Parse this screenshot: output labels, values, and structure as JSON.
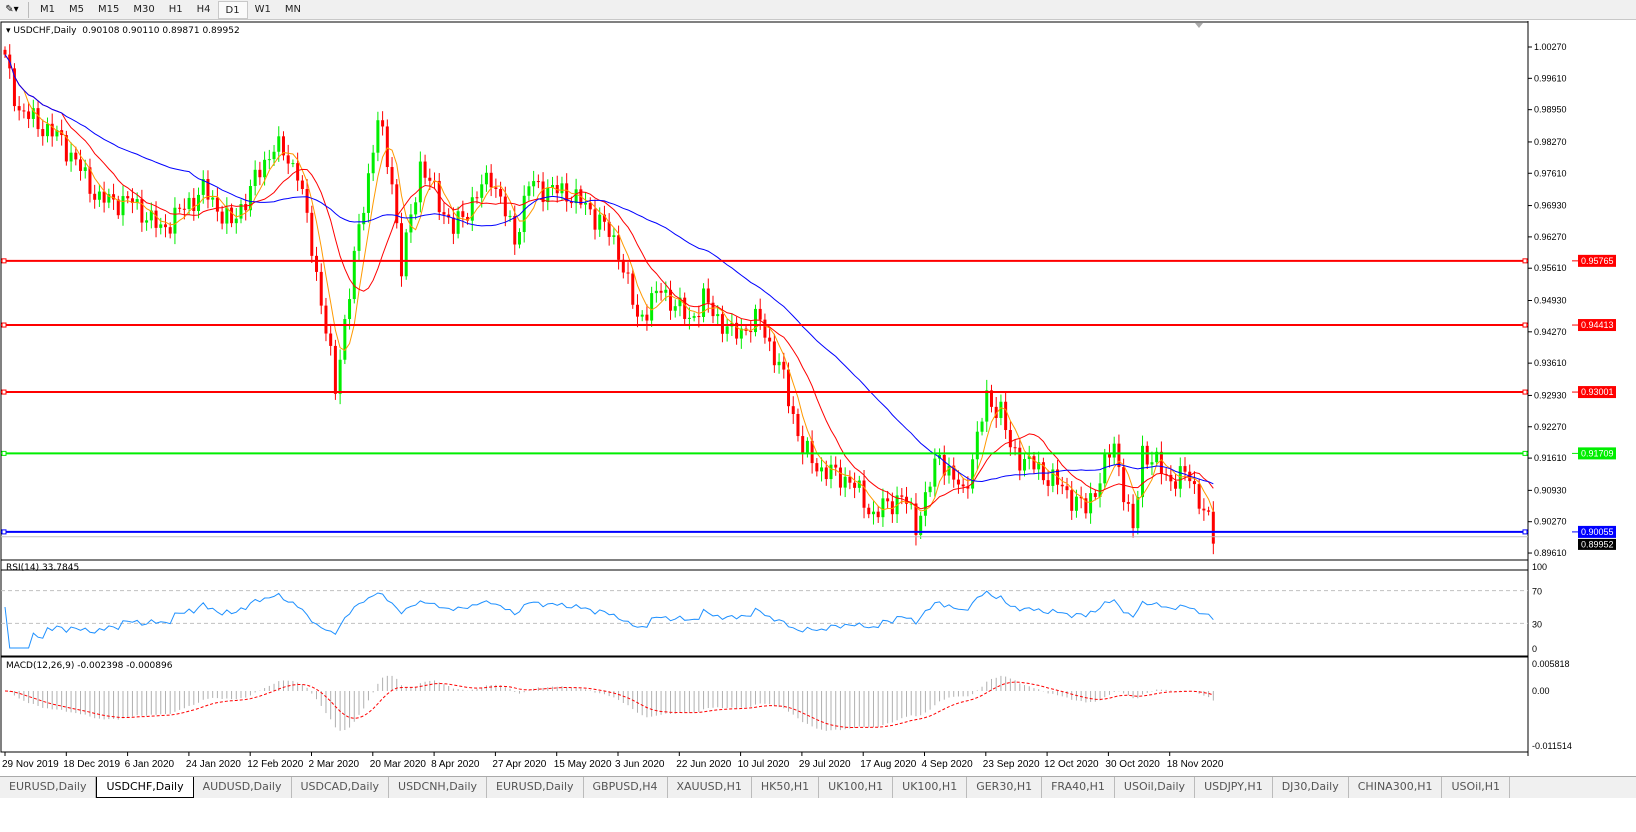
{
  "toolbar": {
    "timeframes": [
      "M1",
      "M5",
      "M15",
      "M30",
      "H1",
      "H4",
      "D1",
      "W1",
      "MN"
    ],
    "active": "D1"
  },
  "chart": {
    "symbol_label": "USDCHF,Daily",
    "ohlc": "0.90108 0.90110 0.89871 0.89952",
    "price_ticks": [
      "1.00270",
      "0.99610",
      "0.98950",
      "0.98270",
      "0.97610",
      "0.96930",
      "0.96270",
      "0.95610",
      "0.94930",
      "0.94270",
      "0.93610",
      "0.92930",
      "0.92270",
      "0.91610",
      "0.90930",
      "0.90270",
      "0.89610"
    ],
    "levels": [
      {
        "price": "0.95765",
        "color": "#ff0000"
      },
      {
        "price": "0.94413",
        "color": "#ff0000"
      },
      {
        "price": "0.93001",
        "color": "#ff0000"
      },
      {
        "price": "0.91709",
        "color": "#00ee00"
      },
      {
        "price": "0.90055",
        "color": "#0000ff"
      }
    ],
    "current_price": "0.89952",
    "colors": {
      "bull": "#00ee00",
      "bear": "#ff0000",
      "ma_fast": "#ff9900",
      "ma_mid": "#ff0000",
      "ma_slow": "#0000ff",
      "rsi": "#1e90ff",
      "macd_signal": "#ff0000",
      "macd_hist": "#b0b0b0"
    },
    "close_path": [
      [
        0,
        0.9999
      ],
      [
        3,
        0.9894
      ],
      [
        12,
        0.9831
      ],
      [
        20,
        0.9705
      ],
      [
        27,
        0.97
      ],
      [
        33,
        0.9642
      ],
      [
        42,
        0.9726
      ],
      [
        48,
        0.9652
      ],
      [
        57,
        0.9821
      ],
      [
        62,
        0.9768
      ],
      [
        67,
        0.9494
      ],
      [
        70,
        0.9304
      ],
      [
        72,
        0.9451
      ],
      [
        75,
        0.964
      ],
      [
        79,
        0.9873
      ],
      [
        82,
        0.9747
      ],
      [
        84,
        0.9557
      ],
      [
        88,
        0.9779
      ],
      [
        95,
        0.9642
      ],
      [
        103,
        0.9758
      ],
      [
        108,
        0.9621
      ],
      [
        111,
        0.9737
      ],
      [
        120,
        0.9716
      ],
      [
        126,
        0.9663
      ],
      [
        130,
        0.96
      ],
      [
        134,
        0.9452
      ],
      [
        139,
        0.9516
      ],
      [
        145,
        0.9452
      ],
      [
        148,
        0.9494
      ],
      [
        154,
        0.9421
      ],
      [
        160,
        0.9452
      ],
      [
        165,
        0.9326
      ],
      [
        169,
        0.9178
      ],
      [
        173,
        0.9136
      ],
      [
        179,
        0.9115
      ],
      [
        184,
        0.9041
      ],
      [
        190,
        0.9083
      ],
      [
        193,
        0.902
      ],
      [
        198,
        0.9168
      ],
      [
        203,
        0.9083
      ],
      [
        208,
        0.9284
      ],
      [
        211,
        0.9263
      ],
      [
        213,
        0.9178
      ],
      [
        222,
        0.9115
      ],
      [
        229,
        0.9052
      ],
      [
        235,
        0.9189
      ],
      [
        239,
        0.9
      ],
      [
        241,
        0.9178
      ],
      [
        247,
        0.9115
      ],
      [
        251,
        0.9126
      ],
      [
        256,
        0.8995
      ]
    ],
    "dates": [
      "29 Nov 2019",
      "18 Dec 2019",
      "6 Jan 2020",
      "24 Jan 2020",
      "12 Feb 2020",
      "2 Mar 2020",
      "20 Mar 2020",
      "8 Apr 2020",
      "27 Apr 2020",
      "15 May 2020",
      "3 Jun 2020",
      "22 Jun 2020",
      "10 Jul 2020",
      "29 Jul 2020",
      "17 Aug 2020",
      "4 Sep 2020",
      "23 Sep 2020",
      "12 Oct 2020",
      "30 Oct 2020",
      "18 Nov 2020"
    ]
  },
  "rsi": {
    "label": "RSI(14) 33.7845",
    "ticks": [
      "100",
      "70",
      "30",
      "0"
    ]
  },
  "macd": {
    "label": "MACD(12,26,9) -0.002398 -0.000896",
    "ticks": [
      "0.005818",
      "0.00",
      "-0.011514"
    ]
  },
  "tabs": [
    "EURUSD,Daily",
    "USDCHF,Daily",
    "AUDUSD,Daily",
    "USDCAD,Daily",
    "USDCNH,Daily",
    "EURUSD,Daily",
    "GBPUSD,H4",
    "XAUUSD,H1",
    "HK50,H1",
    "UK100,H1",
    "UK100,H1",
    "GER30,H1",
    "FRA40,H1",
    "USOil,Daily",
    "USDJPY,H1",
    "DJ30,Daily",
    "CHINA300,H1",
    "USOil,H1"
  ],
  "active_tab": 1
}
